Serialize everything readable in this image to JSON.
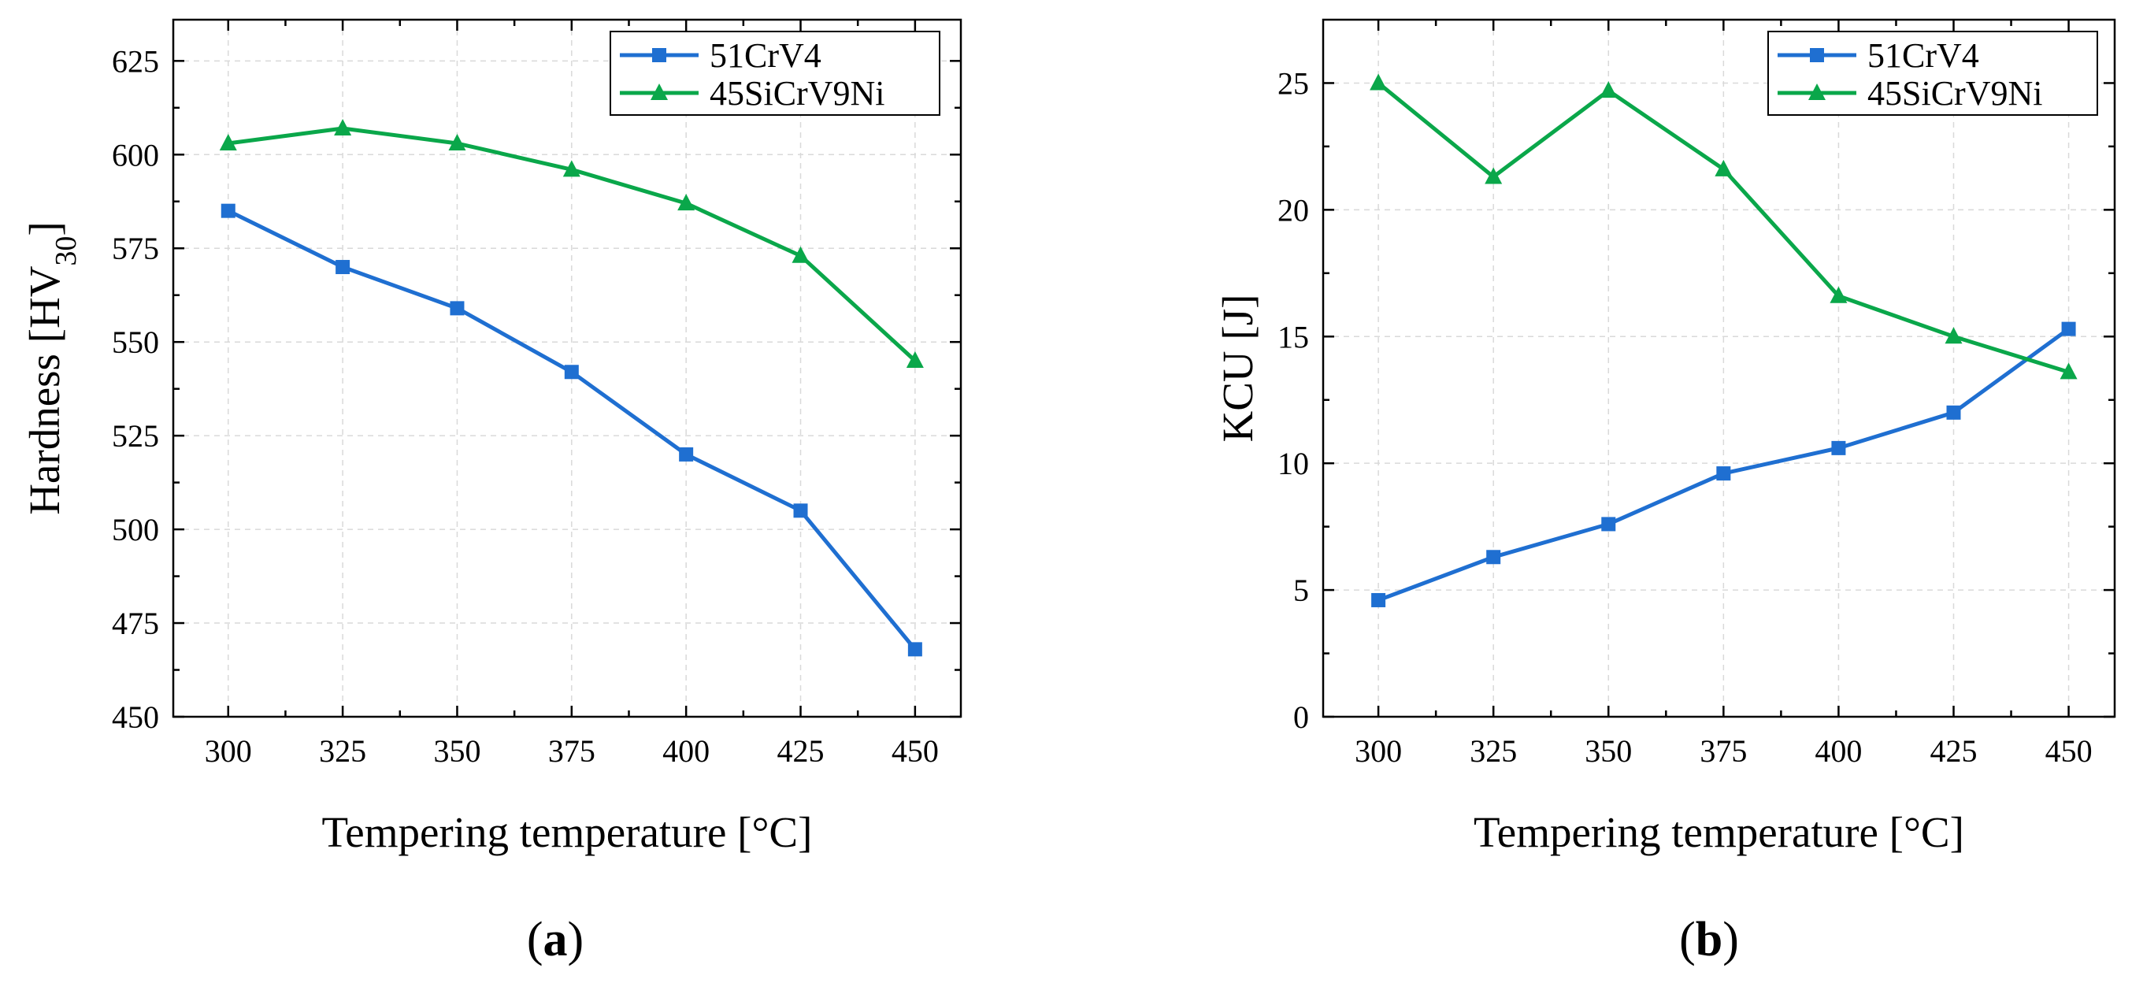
{
  "colors": {
    "series_51CrV4": "#1f6fd1",
    "series_45SiCrV9Ni": "#0aa74a"
  },
  "chart_data": [
    {
      "type": "line",
      "panel_label": "a",
      "title": "",
      "xlabel": "Tempering temperature [°C]",
      "ylabel_main": "Hardness [HV",
      "ylabel_sub": "30",
      "ylabel_close": "]",
      "x": [
        300,
        325,
        350,
        375,
        400,
        425,
        450
      ],
      "xlim": [
        288,
        460
      ],
      "ylim": [
        450,
        636
      ],
      "xticks": [
        300,
        325,
        350,
        375,
        400,
        425,
        450
      ],
      "yticks": [
        450,
        475,
        500,
        525,
        550,
        575,
        600,
        625
      ],
      "grid": true,
      "legend": "top-right",
      "series": [
        {
          "name": "51CrV4",
          "marker": "square",
          "values": [
            585,
            570,
            559,
            542,
            520,
            505,
            468
          ]
        },
        {
          "name": "45SiCrV9Ni",
          "marker": "triangle",
          "values": [
            603,
            607,
            603,
            596,
            587,
            573,
            545
          ]
        }
      ]
    },
    {
      "type": "line",
      "panel_label": "b",
      "title": "",
      "xlabel": "Tempering temperature [°C]",
      "ylabel_main": "KCU [J]",
      "ylabel_sub": "",
      "ylabel_close": "",
      "x": [
        300,
        325,
        350,
        375,
        400,
        425,
        450
      ],
      "xlim": [
        288,
        460
      ],
      "ylim": [
        0,
        27.5
      ],
      "xticks": [
        300,
        325,
        350,
        375,
        400,
        425,
        450
      ],
      "yticks": [
        0,
        5,
        10,
        15,
        20,
        25
      ],
      "grid": true,
      "legend": "top-right",
      "series": [
        {
          "name": "51CrV4",
          "marker": "square",
          "values": [
            4.6,
            6.3,
            7.6,
            9.6,
            10.6,
            12.0,
            15.3
          ]
        },
        {
          "name": "45SiCrV9Ni",
          "marker": "triangle",
          "values": [
            25.0,
            21.3,
            24.7,
            21.6,
            16.6,
            15.0,
            13.6
          ]
        }
      ]
    }
  ]
}
